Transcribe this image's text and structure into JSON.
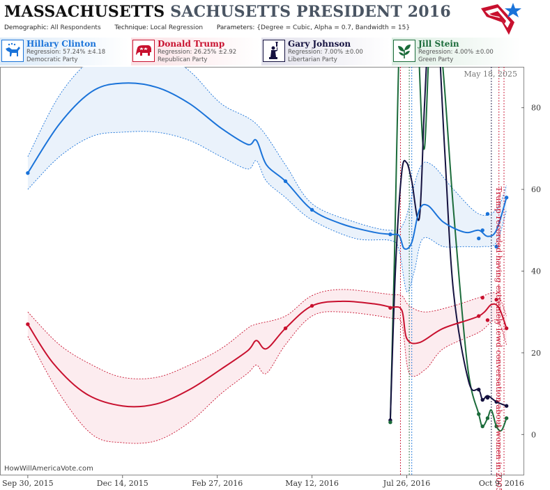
{
  "header": {
    "title_main": "MASSACHUSETTS",
    "title_sub": "SACHUSETTS PRESIDENT 2016",
    "demographic_label": "Demographic:",
    "demographic_value": "All Respondents",
    "technique_label": "Technique:",
    "technique_value": "Local Regression",
    "parameters_label": "Parameters:",
    "parameters_value": "{Degree = Cubic, Alpha = 0.7, Bandwidth = 15}"
  },
  "legend": [
    {
      "name": "Hillary Clinton",
      "regression": "Regression: 57.24% ±4.18",
      "party": "Democratic Party",
      "color": "#1a73d9",
      "bg": "#dbeaf8",
      "icon": "donkey-icon"
    },
    {
      "name": "Donald Trump",
      "regression": "Regression: 26.25% ±2.92",
      "party": "Republican Party",
      "color": "#c8102e",
      "bg": "#fbe1e5",
      "icon": "elephant-icon"
    },
    {
      "name": "Gary Johnson",
      "regression": "Regression: 7.00% ±0.00",
      "party": "Libertarian Party",
      "color": "#14113f",
      "bg": "#e2e1ec",
      "icon": "statue-of-liberty-icon"
    },
    {
      "name": "Jill Stein",
      "regression": "Regression: 4.00% ±0.00",
      "party": "Green Party",
      "color": "#1b6b3a",
      "bg": "#ddeee3",
      "icon": "leaf-icon"
    }
  ],
  "watermark": "HowWillAmericaVote.com",
  "chart_data": {
    "type": "line",
    "date_label": "May 18, 2025",
    "x_tick_labels": [
      "Sep 30, 2015",
      "Dec 14, 2015",
      "Feb 27, 2016",
      "May 12, 2016",
      "Jul 26, 2016",
      "Oct 9, 2016"
    ],
    "x_tick_dates": [
      "2015-09-30",
      "2015-12-14",
      "2016-02-27",
      "2016-05-12",
      "2016-07-26",
      "2016-10-09"
    ],
    "xlim": [
      "2015-09-08",
      "2016-10-27"
    ],
    "ylim": [
      -10,
      90
    ],
    "y_ticks": [
      0,
      20,
      40,
      60,
      80
    ],
    "grid": false,
    "annotation": "Trump recorded having extremely lewd conversation about women in 2005",
    "event_lines": [
      {
        "date": "2016-07-21",
        "color": "#c8102e"
      },
      {
        "date": "2016-07-28",
        "color": "#1b6b3a"
      },
      {
        "date": "2016-07-30",
        "color": "#1a73d9"
      },
      {
        "date": "2016-10-01",
        "color": "#14113f"
      },
      {
        "date": "2016-10-07",
        "color": "#c8102e"
      },
      {
        "date": "2016-10-11",
        "color": "#c8102e"
      }
    ],
    "series": [
      {
        "name": "Hillary Clinton",
        "color": "#1a73d9",
        "band_color": "#eaf2fb",
        "points": [
          [
            "2015-09-30",
            64
          ],
          [
            "2016-04-21",
            62
          ],
          [
            "2016-05-12",
            55
          ],
          [
            "2016-07-13",
            49
          ],
          [
            "2016-09-21",
            48
          ],
          [
            "2016-09-24",
            50
          ],
          [
            "2016-09-28",
            54
          ],
          [
            "2016-10-05",
            46
          ],
          [
            "2016-10-13",
            58
          ]
        ],
        "fit": [
          [
            "2015-09-30",
            64
          ],
          [
            "2015-10-25",
            76
          ],
          [
            "2015-11-20",
            84
          ],
          [
            "2015-12-14",
            86
          ],
          [
            "2016-01-10",
            85
          ],
          [
            "2016-02-05",
            81
          ],
          [
            "2016-03-01",
            75
          ],
          [
            "2016-03-22",
            71
          ],
          [
            "2016-03-29",
            72
          ],
          [
            "2016-04-06",
            66
          ],
          [
            "2016-04-21",
            62
          ],
          [
            "2016-05-12",
            55
          ],
          [
            "2016-06-05",
            51.5
          ],
          [
            "2016-06-30",
            49.5
          ],
          [
            "2016-07-13",
            49
          ],
          [
            "2016-07-20",
            48.7
          ],
          [
            "2016-07-24",
            45.5
          ],
          [
            "2016-07-30",
            47
          ],
          [
            "2016-08-05",
            55
          ],
          [
            "2016-08-12",
            56
          ],
          [
            "2016-08-24",
            52
          ],
          [
            "2016-09-10",
            49.5
          ],
          [
            "2016-09-21",
            50
          ],
          [
            "2016-09-28",
            48.5
          ],
          [
            "2016-10-05",
            50
          ],
          [
            "2016-10-13",
            58
          ]
        ],
        "upper": [
          [
            "2015-09-30",
            68
          ],
          [
            "2015-10-25",
            83
          ],
          [
            "2015-11-20",
            92
          ],
          [
            "2015-12-14",
            95
          ],
          [
            "2016-01-10",
            94
          ],
          [
            "2016-02-05",
            89
          ],
          [
            "2016-03-01",
            81
          ],
          [
            "2016-03-29",
            76
          ],
          [
            "2016-04-21",
            66
          ],
          [
            "2016-05-12",
            56.5
          ],
          [
            "2016-06-15",
            52
          ],
          [
            "2016-07-13",
            50
          ],
          [
            "2016-07-24",
            52
          ],
          [
            "2016-08-05",
            65
          ],
          [
            "2016-08-15",
            66
          ],
          [
            "2016-09-01",
            60
          ],
          [
            "2016-09-21",
            54
          ],
          [
            "2016-10-05",
            55
          ],
          [
            "2016-10-13",
            61
          ]
        ],
        "lower": [
          [
            "2015-09-30",
            60
          ],
          [
            "2015-10-25",
            68
          ],
          [
            "2015-11-20",
            73
          ],
          [
            "2015-12-14",
            74
          ],
          [
            "2016-01-10",
            74
          ],
          [
            "2016-02-05",
            72
          ],
          [
            "2016-03-01",
            68
          ],
          [
            "2016-03-22",
            65
          ],
          [
            "2016-03-29",
            67
          ],
          [
            "2016-04-06",
            62
          ],
          [
            "2016-04-21",
            58
          ],
          [
            "2016-05-12",
            52.5
          ],
          [
            "2016-06-15",
            48
          ],
          [
            "2016-07-13",
            47.5
          ],
          [
            "2016-07-20",
            45
          ],
          [
            "2016-07-26",
            35
          ],
          [
            "2016-08-01",
            40
          ],
          [
            "2016-08-08",
            48
          ],
          [
            "2016-08-24",
            46
          ],
          [
            "2016-09-10",
            46
          ],
          [
            "2016-09-24",
            46
          ],
          [
            "2016-10-05",
            47
          ],
          [
            "2016-10-13",
            55
          ]
        ]
      },
      {
        "name": "Donald Trump",
        "color": "#c8102e",
        "band_color": "#fcecef",
        "points": [
          [
            "2015-09-30",
            27
          ],
          [
            "2016-04-21",
            26
          ],
          [
            "2016-05-12",
            31.5
          ],
          [
            "2016-07-13",
            31
          ],
          [
            "2016-09-21",
            29
          ],
          [
            "2016-09-24",
            33.5
          ],
          [
            "2016-09-28",
            28
          ],
          [
            "2016-10-05",
            33
          ],
          [
            "2016-10-13",
            26
          ]
        ],
        "fit": [
          [
            "2015-09-30",
            27
          ],
          [
            "2015-10-20",
            17.5
          ],
          [
            "2015-11-15",
            10
          ],
          [
            "2015-12-14",
            7
          ],
          [
            "2016-01-10",
            7.5
          ],
          [
            "2016-02-05",
            11
          ],
          [
            "2016-03-01",
            16
          ],
          [
            "2016-03-22",
            20.5
          ],
          [
            "2016-03-29",
            23
          ],
          [
            "2016-04-06",
            21
          ],
          [
            "2016-04-21",
            26
          ],
          [
            "2016-05-12",
            31.5
          ],
          [
            "2016-06-05",
            32.6
          ],
          [
            "2016-06-30",
            32
          ],
          [
            "2016-07-13",
            31.2
          ],
          [
            "2016-07-22",
            30.5
          ],
          [
            "2016-07-26",
            23.5
          ],
          [
            "2016-08-05",
            22.5
          ],
          [
            "2016-08-24",
            26
          ],
          [
            "2016-09-21",
            29
          ],
          [
            "2016-10-01",
            31.8
          ],
          [
            "2016-10-07",
            31
          ],
          [
            "2016-10-13",
            26
          ]
        ],
        "upper": [
          [
            "2015-09-30",
            30
          ],
          [
            "2015-10-25",
            22
          ],
          [
            "2015-11-20",
            17
          ],
          [
            "2015-12-14",
            14
          ],
          [
            "2016-01-10",
            14
          ],
          [
            "2016-02-05",
            17
          ],
          [
            "2016-03-01",
            21
          ],
          [
            "2016-03-22",
            26
          ],
          [
            "2016-03-29",
            27
          ],
          [
            "2016-04-21",
            29
          ],
          [
            "2016-05-12",
            34
          ],
          [
            "2016-06-05",
            35.5
          ],
          [
            "2016-07-13",
            34.3
          ],
          [
            "2016-07-22",
            34
          ],
          [
            "2016-07-28",
            31.5
          ],
          [
            "2016-08-10",
            30
          ],
          [
            "2016-09-01",
            31.5
          ],
          [
            "2016-09-21",
            33.5
          ],
          [
            "2016-10-05",
            34.5
          ],
          [
            "2016-10-13",
            29
          ]
        ],
        "lower": [
          [
            "2015-09-30",
            24
          ],
          [
            "2015-10-25",
            10
          ],
          [
            "2015-11-20",
            0
          ],
          [
            "2015-12-14",
            -2
          ],
          [
            "2016-01-10",
            -1.5
          ],
          [
            "2016-02-05",
            3
          ],
          [
            "2016-03-01",
            10
          ],
          [
            "2016-03-22",
            15
          ],
          [
            "2016-03-29",
            17
          ],
          [
            "2016-04-06",
            15
          ],
          [
            "2016-04-21",
            22
          ],
          [
            "2016-05-12",
            29
          ],
          [
            "2016-06-05",
            30
          ],
          [
            "2016-07-13",
            28.5
          ],
          [
            "2016-07-22",
            27
          ],
          [
            "2016-07-28",
            15
          ],
          [
            "2016-08-10",
            16
          ],
          [
            "2016-08-24",
            21
          ],
          [
            "2016-09-21",
            25
          ],
          [
            "2016-10-05",
            28
          ],
          [
            "2016-10-13",
            22
          ]
        ]
      },
      {
        "name": "Gary Johnson",
        "color": "#14113f",
        "band_color": "none",
        "points": [
          [
            "2016-07-13",
            3.5
          ],
          [
            "2016-09-21",
            11
          ],
          [
            "2016-09-24",
            8.5
          ],
          [
            "2016-09-28",
            9
          ],
          [
            "2016-10-05",
            8
          ],
          [
            "2016-10-13",
            7
          ]
        ],
        "fit": [
          [
            "2016-07-13",
            3.5
          ],
          [
            "2016-07-17",
            40
          ],
          [
            "2016-07-22",
            64
          ],
          [
            "2016-07-26",
            66.5
          ],
          [
            "2016-07-30",
            62
          ],
          [
            "2016-08-05",
            53
          ],
          [
            "2016-08-09",
            80
          ],
          [
            "2016-08-14",
            110
          ],
          [
            "2016-08-18",
            110
          ],
          [
            "2016-08-25",
            70
          ],
          [
            "2016-09-01",
            35
          ],
          [
            "2016-09-13",
            13
          ],
          [
            "2016-09-21",
            11
          ],
          [
            "2016-09-24",
            8.5
          ],
          [
            "2016-09-28",
            9.5
          ],
          [
            "2016-10-05",
            8
          ],
          [
            "2016-10-13",
            7
          ]
        ]
      },
      {
        "name": "Jill Stein",
        "color": "#1b6b3a",
        "band_color": "none",
        "points": [
          [
            "2016-07-13",
            3
          ],
          [
            "2016-09-21",
            5
          ],
          [
            "2016-09-24",
            2
          ],
          [
            "2016-09-28",
            4
          ],
          [
            "2016-10-05",
            2
          ],
          [
            "2016-10-13",
            4
          ]
        ],
        "fit": [
          [
            "2016-07-13",
            3
          ],
          [
            "2016-07-16",
            40
          ],
          [
            "2016-07-22",
            115
          ],
          [
            "2016-07-31",
            140
          ],
          [
            "2016-08-05",
            90
          ],
          [
            "2016-08-09",
            70
          ],
          [
            "2016-08-14",
            100
          ],
          [
            "2016-08-22",
            95
          ],
          [
            "2016-09-01",
            55
          ],
          [
            "2016-09-12",
            17
          ],
          [
            "2016-09-21",
            5
          ],
          [
            "2016-09-24",
            2
          ],
          [
            "2016-09-28",
            4
          ],
          [
            "2016-10-01",
            6
          ],
          [
            "2016-10-05",
            2
          ],
          [
            "2016-10-09",
            1
          ],
          [
            "2016-10-13",
            4
          ]
        ]
      }
    ]
  }
}
